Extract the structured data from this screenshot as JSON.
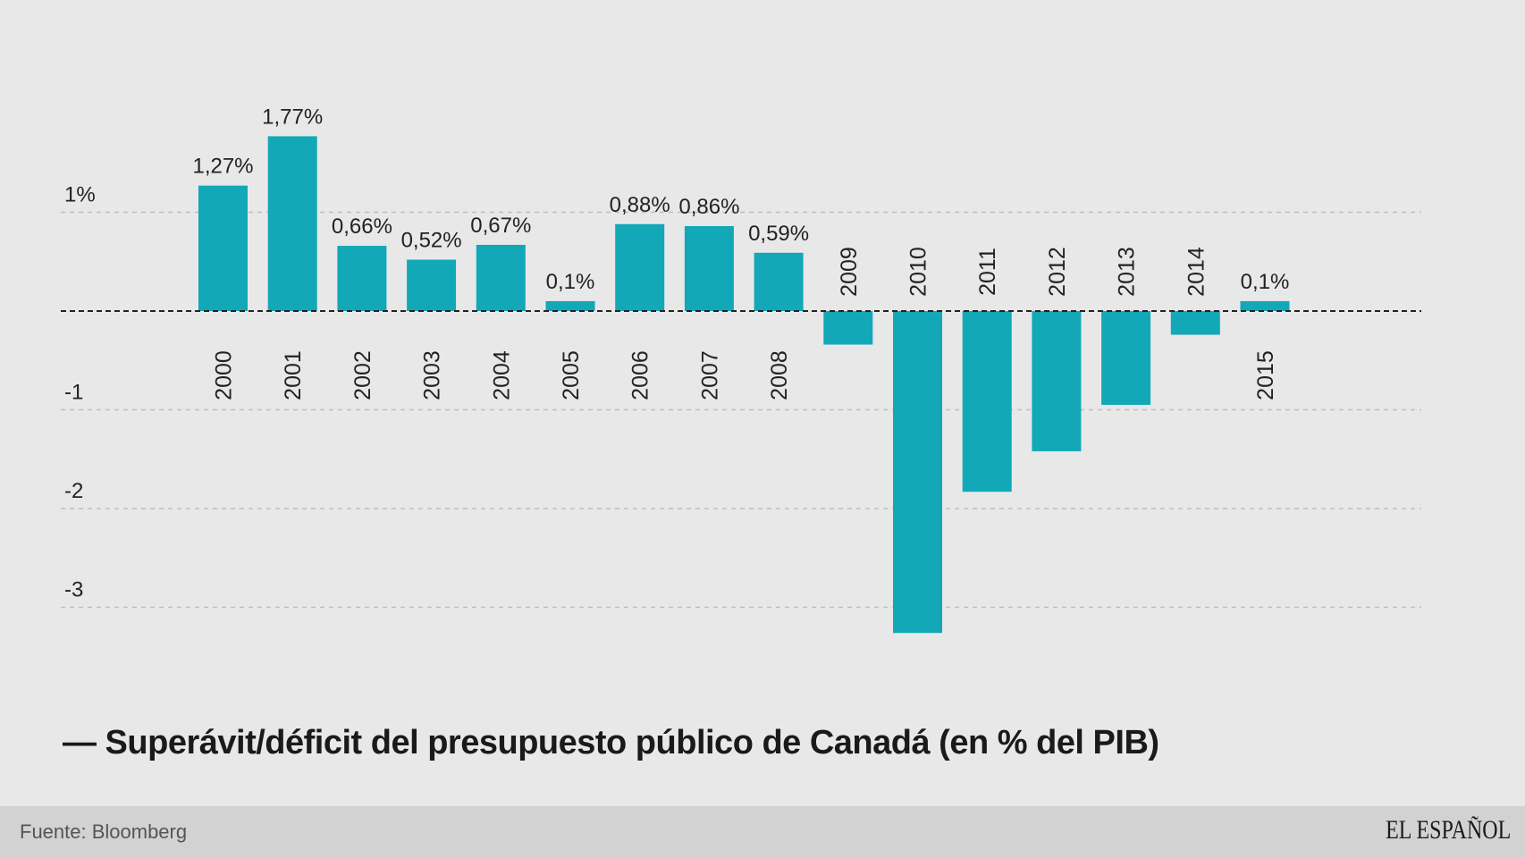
{
  "chart_data": {
    "type": "bar",
    "title": "Superávit/déficit del presupuesto público de Canadá (en % del PIB)",
    "xlabel": "",
    "ylabel": "% del PIB",
    "categories": [
      "2000",
      "2001",
      "2002",
      "2003",
      "2004",
      "2005",
      "2006",
      "2007",
      "2008",
      "2009",
      "2010",
      "2011",
      "2012",
      "2013",
      "2014",
      "2015"
    ],
    "values": [
      1.27,
      1.77,
      0.66,
      0.52,
      0.67,
      0.1,
      0.88,
      0.86,
      0.59,
      -0.34,
      -3.26,
      -1.83,
      -1.42,
      -0.95,
      -0.24,
      0.1
    ],
    "data_labels": [
      "1,27%",
      "1,77%",
      "0,66%",
      "0,52%",
      "0,67%",
      "0,1%",
      "0,88%",
      "0,86%",
      "0,59%",
      "",
      "",
      "",
      "",
      "",
      "",
      "0,1%"
    ],
    "yticks": [
      1,
      -1,
      -2,
      -3
    ],
    "ytick_labels": [
      "1%",
      "-1",
      "-2",
      "-3"
    ],
    "ylim": [
      -3.5,
      2.2
    ],
    "grid": true,
    "bar_color": "#12a8b8",
    "legend": "bottom-left"
  },
  "legend_label": "— Superavít/déficit del presupuesto público de Canadá (en % del PIB)",
  "footer": {
    "source": "Fuente: Bloomberg",
    "logo": "EL ESPAÑOL"
  }
}
